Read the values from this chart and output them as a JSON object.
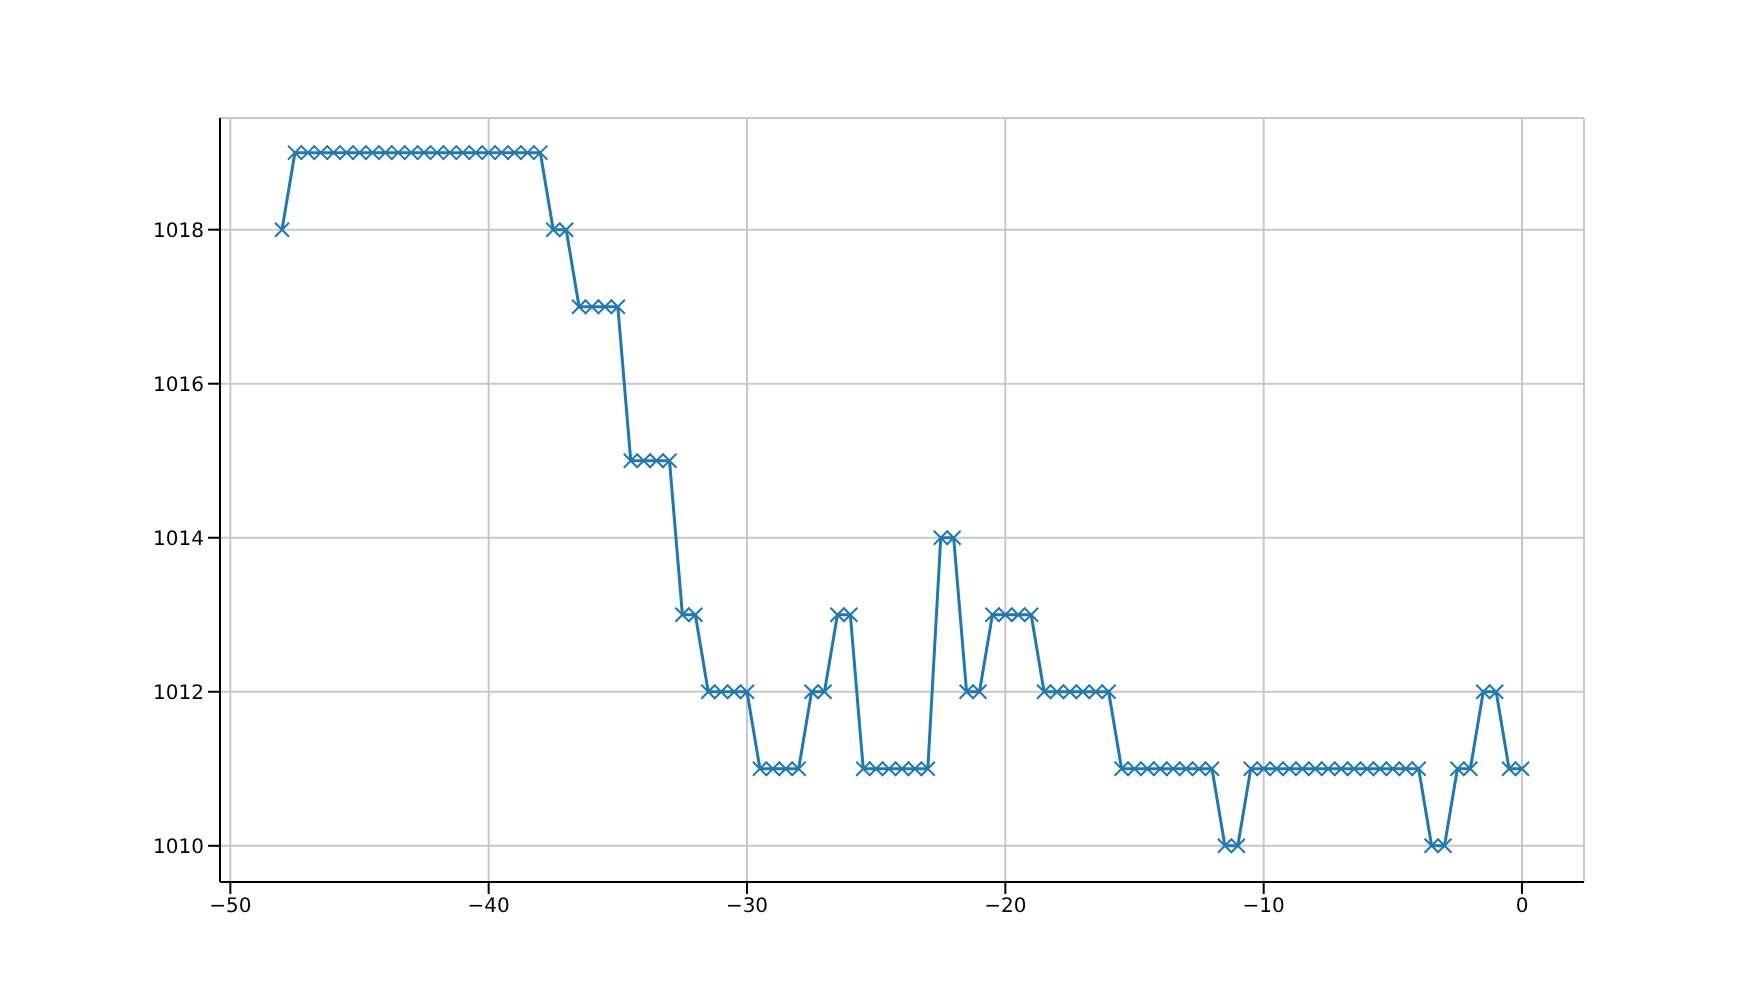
{
  "chart_data": {
    "type": "line",
    "x": [
      -48,
      -47.5,
      -47,
      -46.5,
      -46,
      -45.5,
      -45,
      -44.5,
      -44,
      -43.5,
      -43,
      -42.5,
      -42,
      -41.5,
      -41,
      -40.5,
      -40,
      -39.5,
      -39,
      -38.5,
      -38,
      -37.5,
      -37,
      -36.5,
      -36,
      -35.5,
      -35,
      -34.5,
      -34,
      -33.5,
      -33,
      -32.5,
      -32,
      -31.5,
      -31,
      -30.5,
      -30,
      -29.5,
      -29,
      -28.5,
      -28,
      -27.5,
      -27,
      -26.5,
      -26,
      -25.5,
      -25,
      -24.5,
      -24,
      -23.5,
      -23,
      -22.5,
      -22,
      -21.5,
      -21,
      -20.5,
      -20,
      -19.5,
      -19,
      -18.5,
      -18,
      -17.5,
      -17,
      -16.5,
      -16,
      -15.5,
      -15,
      -14.5,
      -14,
      -13.5,
      -13,
      -12.5,
      -12,
      -11.5,
      -11,
      -10.5,
      -10,
      -9.5,
      -9,
      -8.5,
      -8,
      -7.5,
      -7,
      -6.5,
      -6,
      -5.5,
      -5,
      -4.5,
      -4,
      -3.5,
      -3,
      -2.5,
      -2,
      -1.5,
      -1,
      -0.5,
      0
    ],
    "series": [
      {
        "color": "#1f77b4",
        "values": [
          1018,
          1019,
          1019,
          1019,
          1019,
          1019,
          1019,
          1019,
          1019,
          1019,
          1019,
          1019,
          1019,
          1019,
          1019,
          1019,
          1019,
          1019,
          1019,
          1019,
          1019,
          1018,
          1018,
          1017,
          1017,
          1017,
          1017,
          1015,
          1015,
          1015,
          1015,
          1013,
          1013,
          1012,
          1012,
          1012,
          1012,
          1011,
          1011,
          1011,
          1011,
          1012,
          1012,
          1013,
          1013,
          1011,
          1011,
          1011,
          1011,
          1011,
          1011,
          1014,
          1014,
          1012,
          1012,
          1013,
          1013,
          1013,
          1013,
          1012,
          1012,
          1012,
          1012,
          1012,
          1012,
          1011,
          1011,
          1011,
          1011,
          1011,
          1011,
          1011,
          1011,
          1010,
          1010,
          1011,
          1011,
          1011,
          1011,
          1011,
          1011,
          1011,
          1011,
          1011,
          1011,
          1011,
          1011,
          1011,
          1011,
          1010,
          1010,
          1011,
          1011,
          1012,
          1012,
          1011,
          1011
        ]
      }
    ],
    "xlim": [
      -50.4,
      2.4
    ],
    "xticks": [
      -50,
      -40,
      -30,
      -20,
      -10,
      0
    ],
    "ylim": [
      1009.53,
      1019.45
    ],
    "yticks": [
      1010,
      1012,
      1014,
      1016,
      1018
    ],
    "grid": true,
    "marker": "cross",
    "line_style": "solid"
  }
}
